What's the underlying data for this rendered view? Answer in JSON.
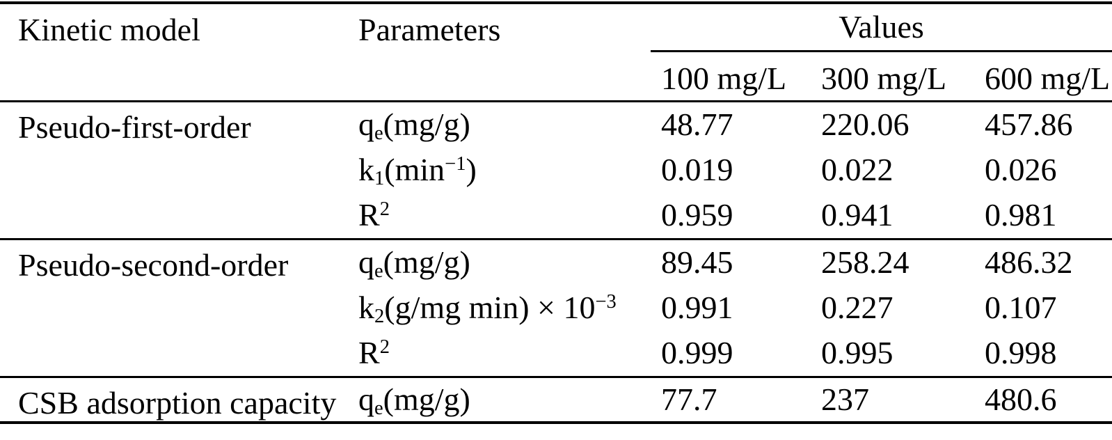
{
  "table": {
    "header": {
      "col_model": "Kinetic model",
      "col_params": "Parameters",
      "col_values": "Values",
      "concentrations": [
        "100 mg/L",
        "300 mg/L",
        "600 mg/L"
      ]
    },
    "groups": [
      {
        "model": "Pseudo-first-order",
        "rows": [
          {
            "param": {
              "t1": "q",
              "sb": "e",
              "t2": "(mg/g)",
              "sp": "",
              "t3": ""
            },
            "values": [
              "48.77",
              "220.06",
              "457.86"
            ]
          },
          {
            "param": {
              "t1": "k",
              "sb": "1",
              "t2": "(min",
              "sp": "−1",
              "t3": ")"
            },
            "values": [
              "0.019",
              "0.022",
              "0.026"
            ]
          },
          {
            "param": {
              "t1": "R",
              "sb": "",
              "t2": "",
              "sp": "2",
              "t3": ""
            },
            "values": [
              "0.959",
              "0.941",
              "0.981"
            ]
          }
        ]
      },
      {
        "model": "Pseudo-second-order",
        "rows": [
          {
            "param": {
              "t1": "q",
              "sb": "e",
              "t2": "(mg/g)",
              "sp": "",
              "t3": ""
            },
            "values": [
              "89.45",
              "258.24",
              "486.32"
            ]
          },
          {
            "param": {
              "t1": "k",
              "sb": "2",
              "t2": "(g/mg min) × 10",
              "sp": "−3",
              "t3": ""
            },
            "values": [
              "0.991",
              "0.227",
              "0.107"
            ]
          },
          {
            "param": {
              "t1": "R",
              "sb": "",
              "t2": "",
              "sp": "2",
              "t3": ""
            },
            "values": [
              "0.999",
              "0.995",
              "0.998"
            ]
          }
        ]
      },
      {
        "model": "CSB adsorption capacity",
        "rows": [
          {
            "param": {
              "t1": "q",
              "sb": "e",
              "t2": "(mg/g)",
              "sp": "",
              "t3": ""
            },
            "values": [
              "77.7",
              "237",
              "480.6"
            ]
          }
        ]
      }
    ]
  }
}
